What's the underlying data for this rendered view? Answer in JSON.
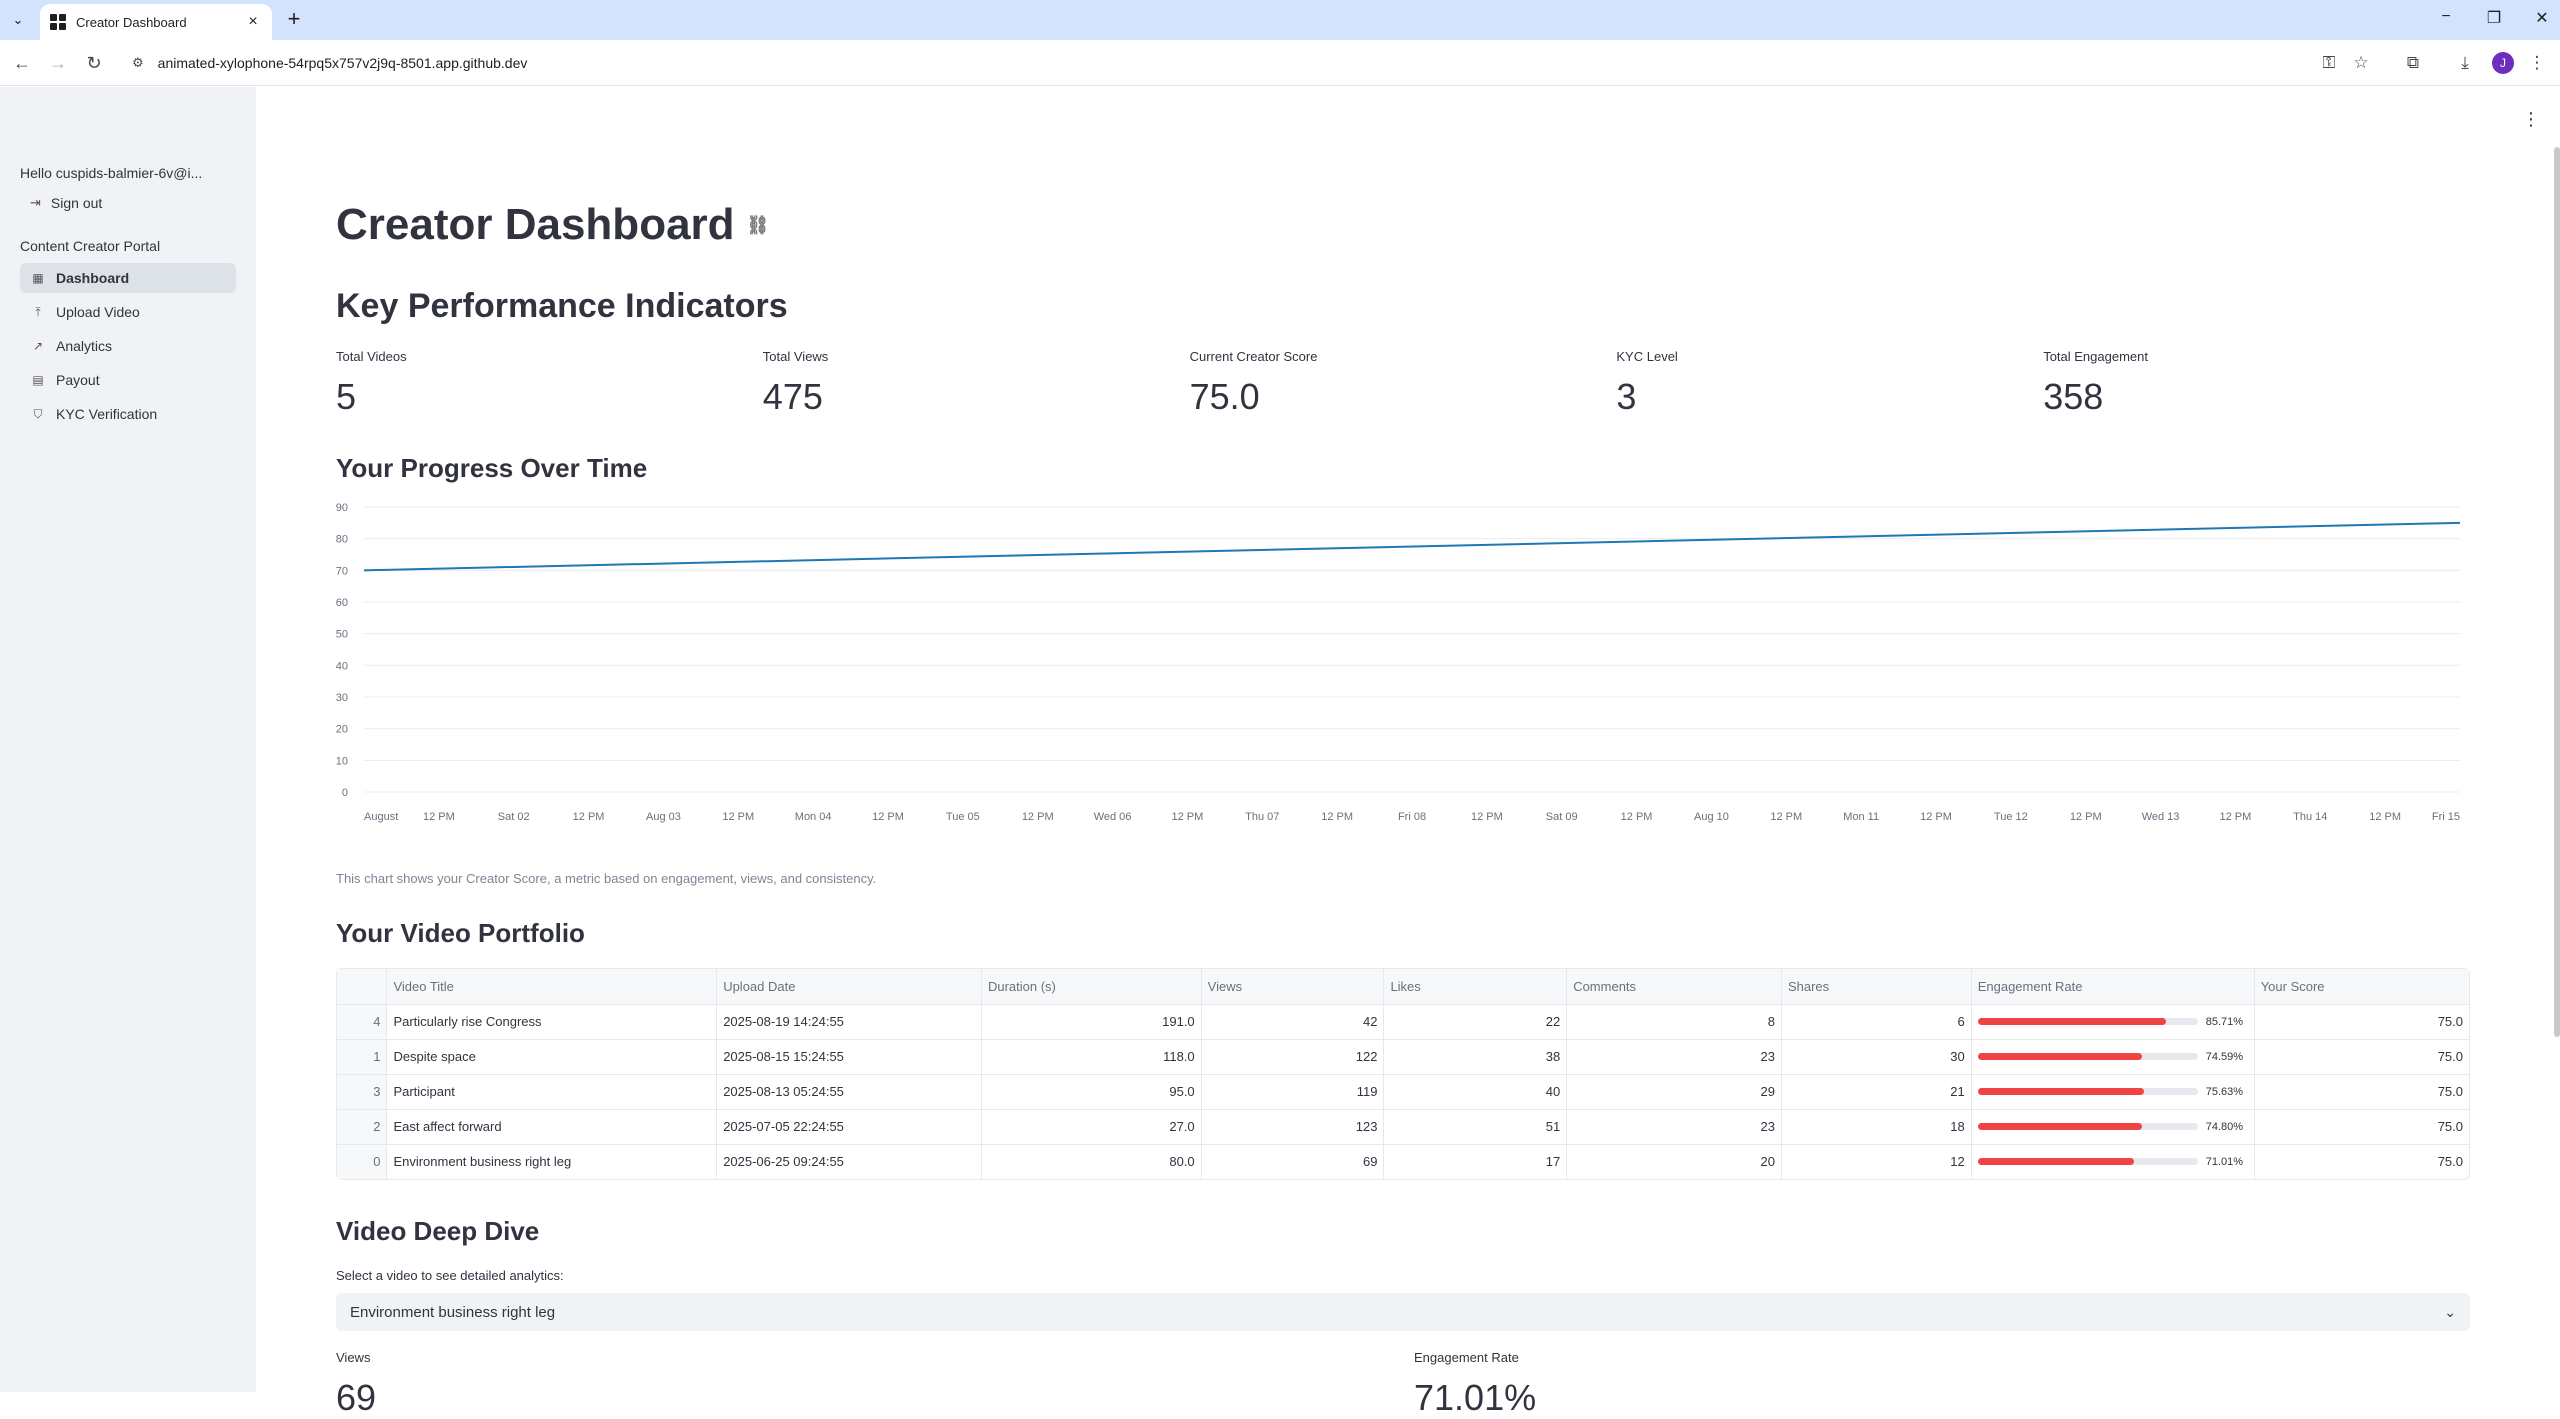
{
  "browser": {
    "tab_title": "Creator Dashboard",
    "url": "animated-xylophone-54rpq5x757v2j9q-8501.app.github.dev",
    "profile_initial": "J"
  },
  "sidebar": {
    "hello": "Hello cuspids-balmier-6v@i...",
    "sign_out": "Sign out",
    "section": "Content Creator Portal",
    "items": [
      {
        "label": "Dashboard",
        "icon": "dashboard-icon",
        "active": true
      },
      {
        "label": "Upload Video",
        "icon": "upload-icon",
        "active": false
      },
      {
        "label": "Analytics",
        "icon": "trend-icon",
        "active": false
      },
      {
        "label": "Payout",
        "icon": "card-icon",
        "active": false
      },
      {
        "label": "KYC Verification",
        "icon": "shield-check-icon",
        "active": false
      }
    ]
  },
  "page": {
    "title": "Creator Dashboard",
    "kpi_heading": "Key Performance Indicators",
    "kpis": [
      {
        "label": "Total Videos",
        "value": "5"
      },
      {
        "label": "Total Views",
        "value": "475"
      },
      {
        "label": "Current Creator Score",
        "value": "75.0"
      },
      {
        "label": "KYC Level",
        "value": "3"
      },
      {
        "label": "Total Engagement",
        "value": "358"
      }
    ],
    "progress_heading": "Your Progress Over Time",
    "chart_caption": "This chart shows your Creator Score, a metric based on engagement, views, and consistency.",
    "portfolio_heading": "Your Video Portfolio",
    "deep_dive_heading": "Video Deep Dive",
    "select_label": "Select a video to see detailed analytics:",
    "select_value": "Environment business right leg",
    "detail_metrics": [
      {
        "label": "Views",
        "value": "69"
      },
      {
        "label": "Engagement Rate",
        "value": "71.01%"
      }
    ]
  },
  "table": {
    "columns": [
      "",
      "Video Title",
      "Upload Date",
      "Duration (s)",
      "Views",
      "Likes",
      "Comments",
      "Shares",
      "Engagement Rate",
      "Your Score"
    ],
    "rows": [
      {
        "idx": "4",
        "title": "Particularly rise Congress",
        "date": "2025-08-19 14:24:55",
        "duration": "191.0",
        "views": "42",
        "likes": "22",
        "comments": "8",
        "shares": "6",
        "er": "85.71%",
        "er_frac": 0.8571,
        "score": "75.0"
      },
      {
        "idx": "1",
        "title": "Despite space",
        "date": "2025-08-15 15:24:55",
        "duration": "118.0",
        "views": "122",
        "likes": "38",
        "comments": "23",
        "shares": "30",
        "er": "74.59%",
        "er_frac": 0.7459,
        "score": "75.0"
      },
      {
        "idx": "3",
        "title": "Participant",
        "date": "2025-08-13 05:24:55",
        "duration": "95.0",
        "views": "119",
        "likes": "40",
        "comments": "29",
        "shares": "21",
        "er": "75.63%",
        "er_frac": 0.7563,
        "score": "75.0"
      },
      {
        "idx": "2",
        "title": "East affect forward",
        "date": "2025-07-05 22:24:55",
        "duration": "27.0",
        "views": "123",
        "likes": "51",
        "comments": "23",
        "shares": "18",
        "er": "74.80%",
        "er_frac": 0.748,
        "score": "75.0"
      },
      {
        "idx": "0",
        "title": "Environment business right leg",
        "date": "2025-06-25 09:24:55",
        "duration": "80.0",
        "views": "69",
        "likes": "17",
        "comments": "20",
        "shares": "12",
        "er": "71.01%",
        "er_frac": 0.7101,
        "score": "75.0"
      }
    ]
  },
  "chart_data": {
    "type": "line",
    "x": [
      "2025-08-01",
      "2025-08-15"
    ],
    "series": [
      {
        "values": [
          70,
          85
        ]
      }
    ],
    "ylim": [
      0,
      90
    ],
    "yticks": [
      0,
      10,
      20,
      30,
      40,
      50,
      60,
      70,
      80,
      90
    ],
    "xticks": [
      "August",
      "12 PM",
      "Sat 02",
      "12 PM",
      "Aug 03",
      "12 PM",
      "Mon 04",
      "12 PM",
      "Tue 05",
      "12 PM",
      "Wed 06",
      "12 PM",
      "Thu 07",
      "12 PM",
      "Fri 08",
      "12 PM",
      "Sat 09",
      "12 PM",
      "Aug 10",
      "12 PM",
      "Mon 11",
      "12 PM",
      "Tue 12",
      "12 PM",
      "Wed 13",
      "12 PM",
      "Thu 14",
      "12 PM",
      "Fri 15"
    ],
    "grid": true,
    "line_color": "#1f77b4"
  },
  "colors": {
    "accent": "#ef4444",
    "sidebar_bg": "#f0f2f6",
    "text": "#31333f"
  }
}
